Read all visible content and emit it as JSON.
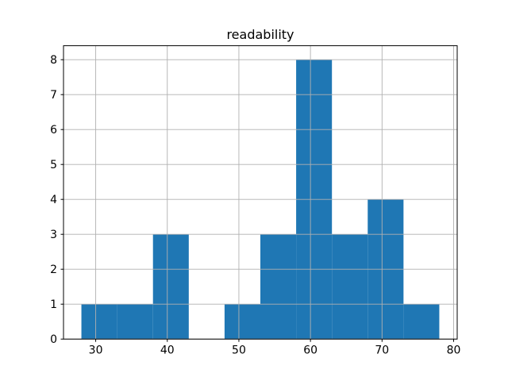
{
  "figure": {
    "title": "readability"
  },
  "colors": {
    "bar": "#1f77b4",
    "grid": "#b0b0b0",
    "spine": "#000000",
    "background": "#ffffff",
    "text": "#000000"
  },
  "chart_data": {
    "type": "bar",
    "subtype": "histogram",
    "title": "readability",
    "xlabel": "",
    "ylabel": "",
    "bin_edges": [
      28,
      33,
      38,
      43,
      48,
      53,
      58,
      63,
      68,
      73,
      78
    ],
    "counts": [
      1,
      1,
      3,
      0,
      1,
      3,
      8,
      3,
      4,
      1
    ],
    "xticks": [
      30,
      40,
      50,
      60,
      70,
      80
    ],
    "yticks": [
      0,
      1,
      2,
      3,
      4,
      5,
      6,
      7,
      8
    ],
    "xlim": [
      25.5,
      80.5
    ],
    "ylim": [
      0,
      8.4
    ],
    "grid": true,
    "grid_above_bars": true,
    "legend": false,
    "bar_color": "#1f77b4",
    "grid_color": "#b0b0b0"
  }
}
